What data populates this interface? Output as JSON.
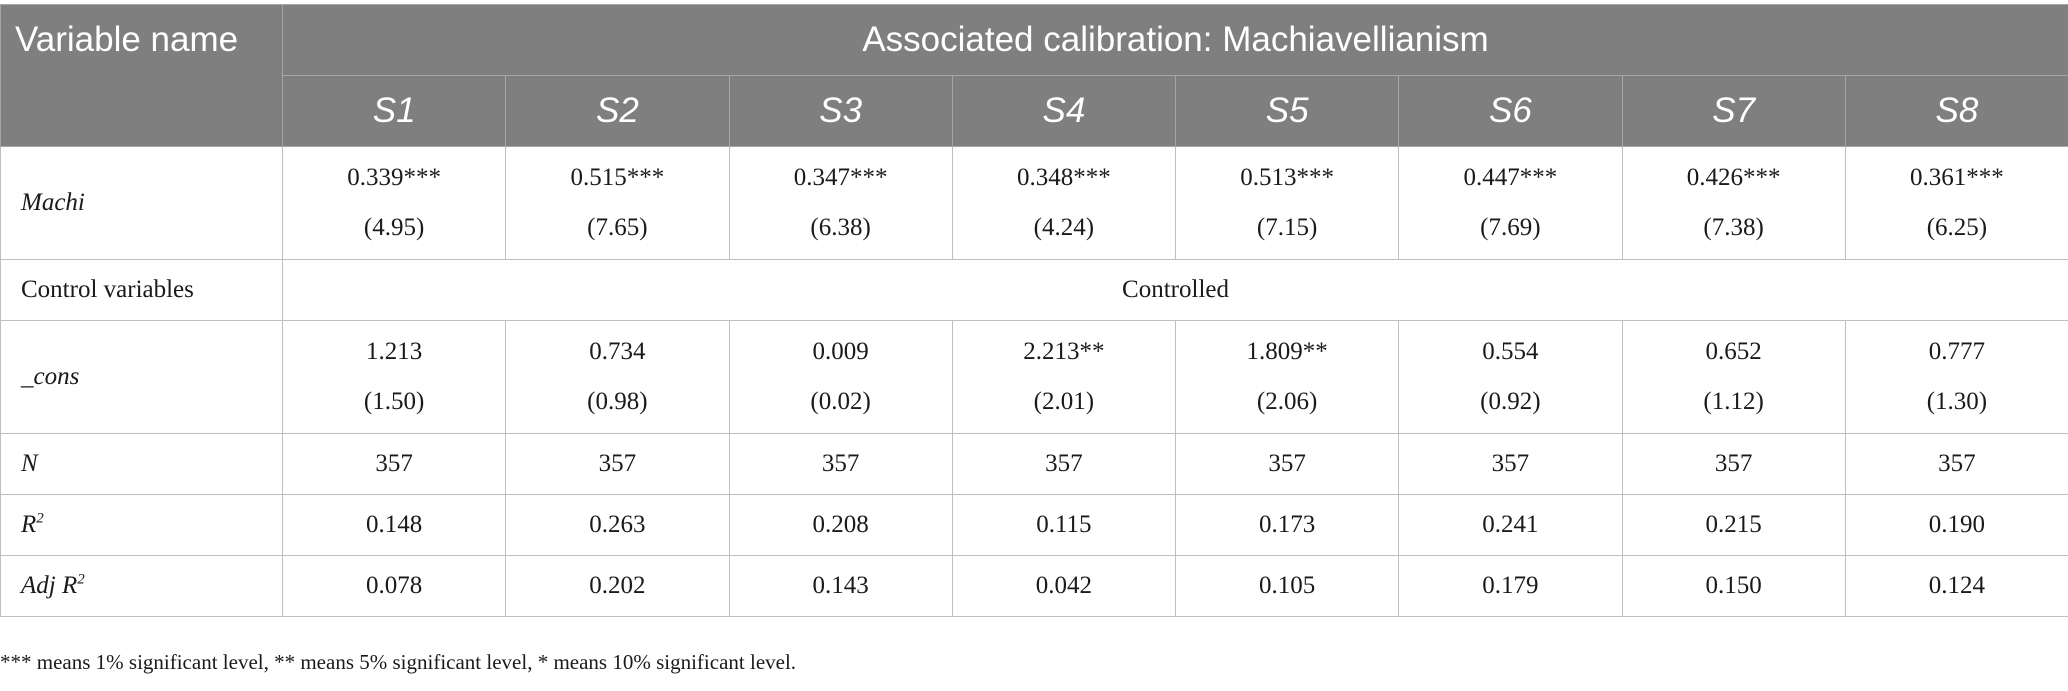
{
  "table": {
    "variable_header": "Variable name",
    "group_header": "Associated calibration: Machiavellianism",
    "columns": [
      "S1",
      "S2",
      "S3",
      "S4",
      "S5",
      "S6",
      "S7",
      "S8"
    ],
    "rows": {
      "machi": {
        "label": "Machi",
        "coef": [
          "0.339***",
          "0.515***",
          "0.347***",
          "0.348***",
          "0.513***",
          "0.447***",
          "0.426***",
          "0.361***"
        ],
        "t": [
          "(4.95)",
          "(7.65)",
          "(6.38)",
          "(4.24)",
          "(7.15)",
          "(7.69)",
          "(7.38)",
          "(6.25)"
        ]
      },
      "control": {
        "label": "Control variables",
        "value": "Controlled"
      },
      "cons": {
        "label": "_cons",
        "coef": [
          "1.213",
          "0.734",
          "0.009",
          "2.213**",
          "1.809**",
          "0.554",
          "0.652",
          "0.777"
        ],
        "t": [
          "(1.50)",
          "(0.98)",
          "(0.02)",
          "(2.01)",
          "(2.06)",
          "(0.92)",
          "(1.12)",
          "(1.30)"
        ]
      },
      "n": {
        "label": "N",
        "values": [
          "357",
          "357",
          "357",
          "357",
          "357",
          "357",
          "357",
          "357"
        ]
      },
      "r2": {
        "label_main": "R",
        "label_sup": "2",
        "values": [
          "0.148",
          "0.263",
          "0.208",
          "0.115",
          "0.173",
          "0.241",
          "0.215",
          "0.190"
        ]
      },
      "adj_r2": {
        "label_main": "Adj R",
        "label_sup": "2",
        "values": [
          "0.078",
          "0.202",
          "0.143",
          "0.042",
          "0.105",
          "0.179",
          "0.150",
          "0.124"
        ]
      }
    },
    "note": "*** means 1% significant level, ** means 5% significant level, * means 10% significant level."
  }
}
